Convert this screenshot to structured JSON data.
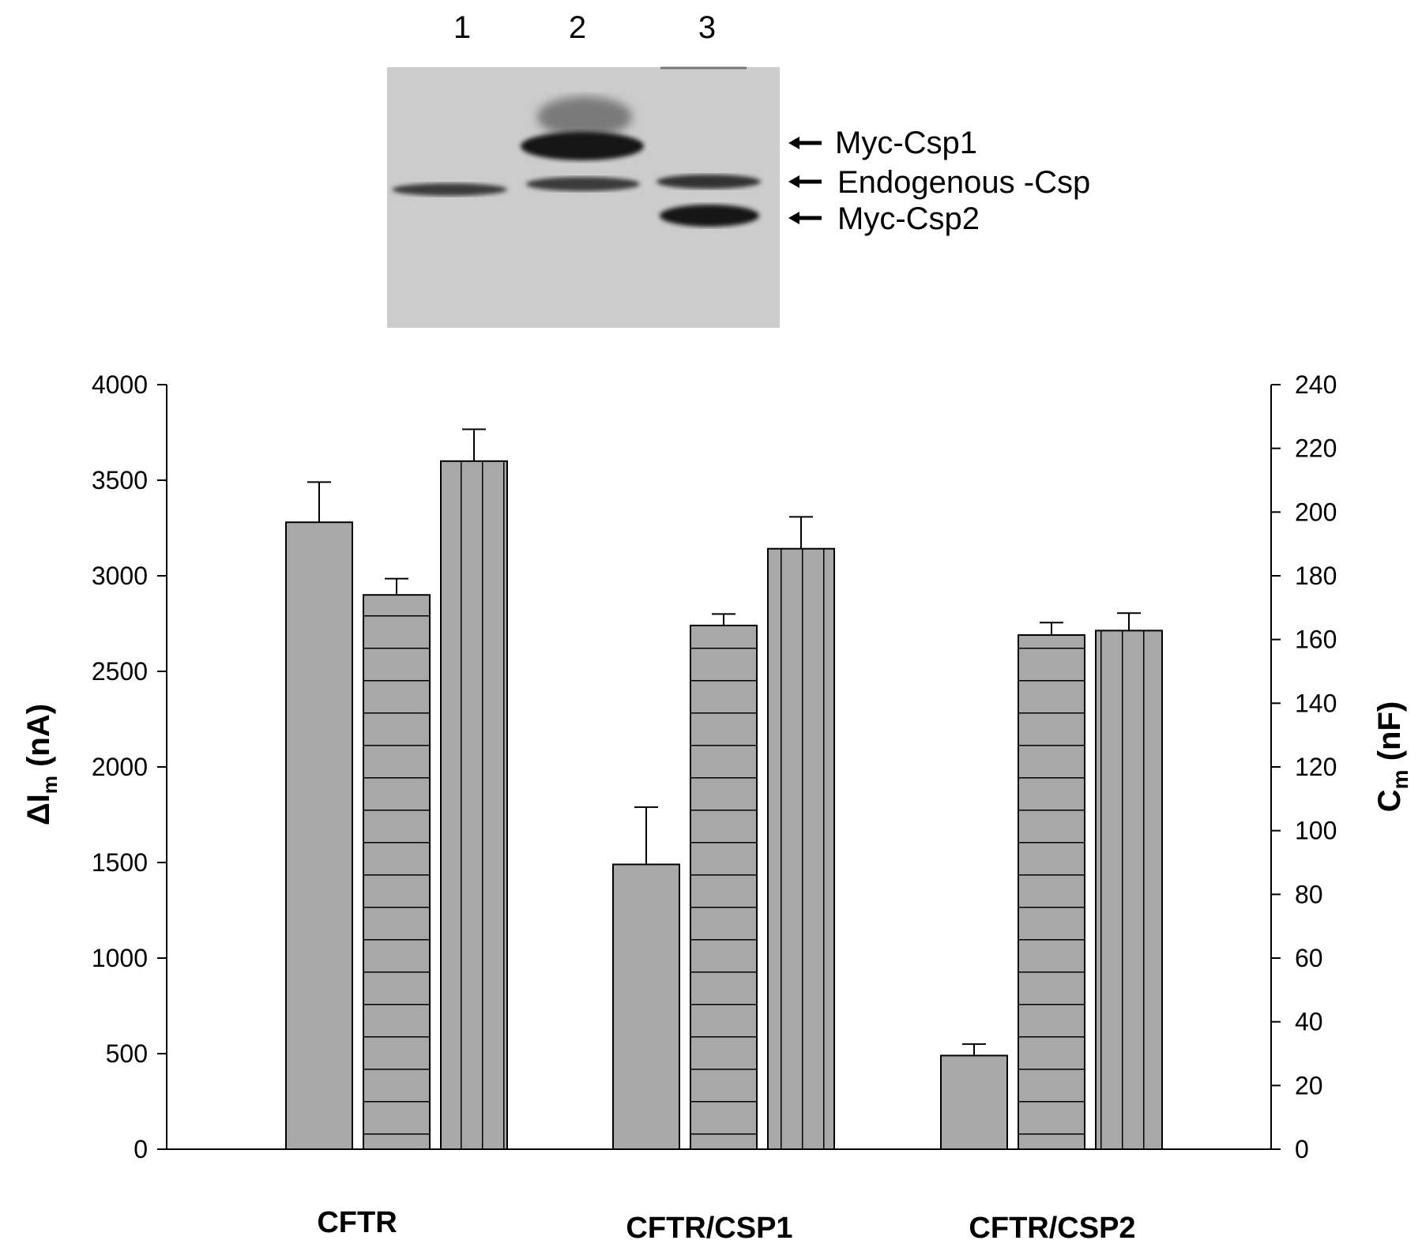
{
  "blot": {
    "lanes": [
      "1",
      "2",
      "3"
    ],
    "labels": [
      "Myc-Csp1",
      "Endogenous -Csp",
      "Myc-Csp2"
    ]
  },
  "chart_data": {
    "type": "bar",
    "categories": [
      "CFTR",
      "CFTR/CSP1",
      "CFTR/CSP2"
    ],
    "y_left": {
      "label_main": "ΔI",
      "label_sub": "m",
      "label_unit": " (nA)",
      "lim": [
        0,
        4000
      ],
      "ticks": [
        "0",
        "500",
        "1000",
        "1500",
        "2000",
        "2500",
        "3000",
        "3500",
        "4000"
      ]
    },
    "y_right": {
      "label_main": "C",
      "label_sub": "m",
      "label_unit": " (nF)",
      "lim": [
        0,
        240
      ],
      "ticks": [
        "0",
        "20",
        "40",
        "60",
        "80",
        "100",
        "120",
        "140",
        "160",
        "180",
        "200",
        "220",
        "240"
      ]
    },
    "series": [
      {
        "pattern": "solid",
        "axis": "left",
        "values": [
          3280,
          1490,
          490
        ],
        "errors": [
          210,
          300,
          60
        ]
      },
      {
        "pattern": "horizontal-stripes",
        "axis": "left",
        "values": [
          2900,
          2740,
          2690
        ],
        "errors": [
          85,
          60,
          65
        ]
      },
      {
        "pattern": "vertical-stripes",
        "axis": "right",
        "values": [
          216,
          188.5,
          162.8
        ],
        "errors": [
          10,
          10,
          5.5
        ]
      }
    ],
    "bar_color": "#a8a8a8",
    "grid": false,
    "legend": "none"
  }
}
